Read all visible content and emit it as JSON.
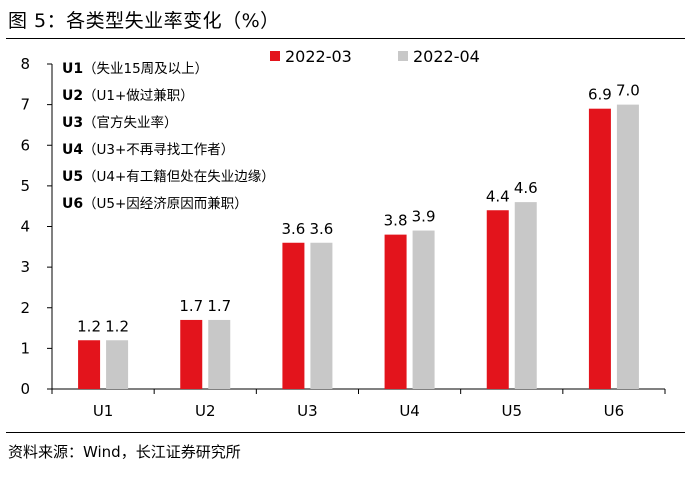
{
  "header": {
    "title": "图 5：各类型失业率变化（%）"
  },
  "footer": {
    "source": "资料来源：Wind，长江证券研究所"
  },
  "colors": {
    "series1": "#e3141c",
    "series2": "#c8c8c8",
    "axis": "#000000"
  },
  "notes": [
    {
      "key": "U1",
      "desc": "（失业15周及以上）"
    },
    {
      "key": "U2",
      "desc": "（U1+做过兼职）"
    },
    {
      "key": "U3",
      "desc": "（官方失业率）"
    },
    {
      "key": "U4",
      "desc": "（U3+不再寻找工作者）"
    },
    {
      "key": "U5",
      "desc": "（U4+有工籍但处在失业边缘）"
    },
    {
      "key": "U6",
      "desc": "（U5+因经济原因而兼职）"
    }
  ],
  "chart_data": {
    "type": "bar",
    "title": "各类型失业率变化（%）",
    "categories": [
      "U1",
      "U2",
      "U3",
      "U4",
      "U5",
      "U6"
    ],
    "series": [
      {
        "name": "2022-03",
        "values": [
          1.2,
          1.7,
          3.6,
          3.8,
          4.4,
          6.9
        ],
        "labels": [
          "1.2",
          "1.7",
          "3.6",
          "3.8",
          "4.4",
          "6.9"
        ]
      },
      {
        "name": "2022-04",
        "values": [
          1.2,
          1.7,
          3.6,
          3.9,
          4.6,
          7.0
        ],
        "labels": [
          "1.2",
          "1.7",
          "3.6",
          "3.9",
          "4.6",
          "7.0"
        ]
      }
    ],
    "ylim": [
      0,
      8
    ],
    "yticks": [
      0,
      1,
      2,
      3,
      4,
      5,
      6,
      7,
      8
    ],
    "legend_position": "top-center",
    "grid": false,
    "xlabel": "",
    "ylabel": ""
  }
}
